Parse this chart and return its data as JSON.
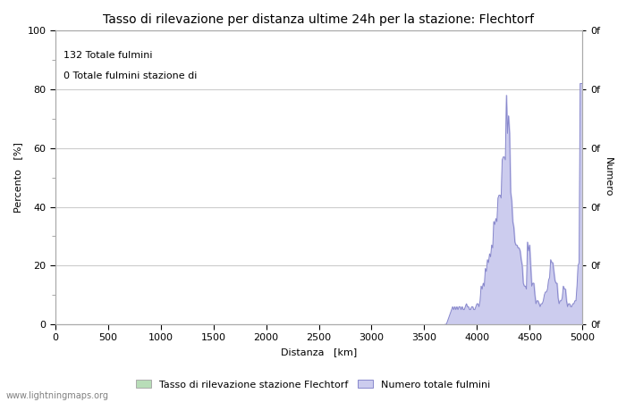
{
  "title": "Tasso di rilevazione per distanza ultime 24h per la stazione: Flechtorf",
  "xlabel": "Distanza   [km]",
  "ylabel_left": "Percento   [%]",
  "ylabel_right": "Numero",
  "annotation_line1": "132 Totale fulmini",
  "annotation_line2": "0 Totale fulmini stazione di",
  "legend_label1": "Tasso di rilevazione stazione Flechtorf",
  "legend_label2": "Numero totale fulmini",
  "watermark": "www.lightningmaps.org",
  "xlim": [
    0,
    5000
  ],
  "ylim": [
    0,
    100
  ],
  "right_ylim": [
    0,
    100
  ],
  "xticks": [
    0,
    500,
    1000,
    1500,
    2000,
    2500,
    3000,
    3500,
    4000,
    4500,
    5000
  ],
  "yticks_left": [
    0,
    20,
    40,
    60,
    80,
    100
  ],
  "right_ytick_positions": [
    0,
    20,
    40,
    60,
    80,
    100
  ],
  "right_ytick_labels": [
    "0f",
    "0f",
    "0f",
    "0f",
    "0f",
    "0f"
  ],
  "bg_color": "#ffffff",
  "grid_color": "#cccccc",
  "line_color": "#8888cc",
  "fill_color": "#ccccee",
  "green_fill_color": "#b8ddb8",
  "title_fontsize": 10,
  "axis_label_fontsize": 8,
  "tick_fontsize": 8,
  "annotation_fontsize": 8,
  "legend_fontsize": 8,
  "watermark_fontsize": 7,
  "signal_x": [
    3700,
    3710,
    3720,
    3730,
    3740,
    3750,
    3760,
    3770,
    3780,
    3790,
    3800,
    3810,
    3820,
    3830,
    3840,
    3850,
    3860,
    3870,
    3880,
    3890,
    3900,
    3910,
    3920,
    3930,
    3940,
    3950,
    3960,
    3970,
    3980,
    3990,
    4000,
    4010,
    4020,
    4030,
    4040,
    4050,
    4060,
    4070,
    4080,
    4090,
    4100,
    4110,
    4120,
    4130,
    4140,
    4150,
    4160,
    4170,
    4180,
    4190,
    4200,
    4210,
    4220,
    4230,
    4240,
    4250,
    4260,
    4270,
    4280,
    4290,
    4300,
    4310,
    4320,
    4330,
    4340,
    4350,
    4360,
    4370,
    4380,
    4390,
    4400,
    4410,
    4420,
    4430,
    4440,
    4450,
    4460,
    4470,
    4480,
    4490,
    4500,
    4510,
    4520,
    4530,
    4540,
    4550,
    4560,
    4570,
    4580,
    4590,
    4600,
    4610,
    4620,
    4630,
    4640,
    4650,
    4660,
    4670,
    4680,
    4690,
    4700,
    4710,
    4720,
    4730,
    4740,
    4750,
    4760,
    4770,
    4780,
    4790,
    4800,
    4810,
    4820,
    4830,
    4840,
    4850,
    4860,
    4870,
    4880,
    4890,
    4900,
    4910,
    4920,
    4930,
    4940,
    4950,
    4960,
    4970,
    4980,
    4990,
    5000
  ],
  "signal_y": [
    0,
    0,
    1,
    2,
    3,
    4,
    5,
    6,
    5,
    6,
    5,
    6,
    5,
    6,
    6,
    5,
    6,
    5,
    5,
    6,
    7,
    6,
    6,
    5,
    5,
    6,
    6,
    5,
    5,
    6,
    7,
    7,
    6,
    8,
    13,
    12,
    14,
    13,
    19,
    18,
    22,
    21,
    24,
    23,
    27,
    26,
    35,
    34,
    36,
    35,
    43,
    44,
    44,
    43,
    56,
    57,
    57,
    56,
    78,
    65,
    71,
    65,
    45,
    42,
    35,
    33,
    28,
    27,
    27,
    26,
    26,
    25,
    22,
    20,
    14,
    13,
    13,
    12,
    28,
    25,
    27,
    20,
    13,
    14,
    14,
    10,
    7,
    8,
    8,
    7,
    6,
    7,
    7,
    8,
    10,
    11,
    11,
    12,
    15,
    16,
    22,
    21,
    21,
    18,
    15,
    14,
    14,
    9,
    7,
    8,
    8,
    9,
    13,
    12,
    12,
    8,
    6,
    7,
    7,
    6,
    6,
    7,
    7,
    8,
    8,
    13,
    20,
    21,
    82,
    82,
    82
  ]
}
